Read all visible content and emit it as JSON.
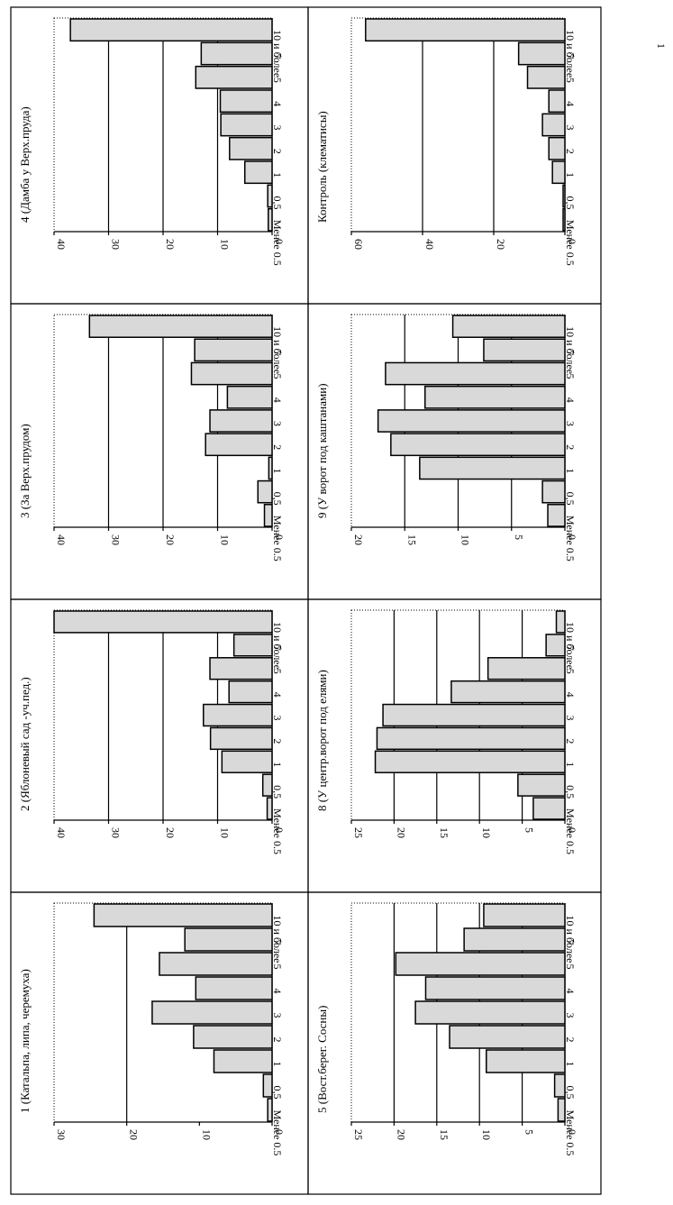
{
  "page_marks": [
    "1"
  ],
  "chart_data": [
    {
      "type": "bar",
      "title": "1 (Катальпа, липа, черемуха)",
      "categories": [
        "10 и более",
        "7",
        "5",
        "4",
        "3",
        "2",
        "1",
        "0,5",
        "Менее 0.5"
      ],
      "values": [
        24.5,
        12,
        15.5,
        10.5,
        16.5,
        10.8,
        8,
        1.2,
        0.6
      ],
      "ylim": [
        0,
        30
      ],
      "yticks": [
        "0",
        "10",
        "20",
        "30"
      ],
      "gridlines": [
        20
      ]
    },
    {
      "type": "bar",
      "title": "2 (Яблоневый сад -уч.пед.)",
      "categories": [
        "10 и более",
        "7",
        "5",
        "4",
        "3",
        "2",
        "1",
        "0,5",
        "Менее 0.5"
      ],
      "values": [
        40,
        7,
        11.4,
        7.9,
        12.6,
        11.3,
        9.2,
        1.7,
        0.9
      ],
      "ylim": [
        0,
        40
      ],
      "yticks": [
        "0",
        "10",
        "20",
        "30",
        "40"
      ],
      "gridlines": [
        10,
        20,
        30
      ]
    },
    {
      "type": "bar",
      "title": "3 (За Верх.прудом)",
      "categories": [
        "10 и более",
        "7",
        "5",
        "4",
        "3",
        "2",
        "1",
        "0,5",
        "Менее 0.5"
      ],
      "values": [
        33.5,
        14.2,
        14.8,
        8.2,
        11.4,
        12.2,
        0.6,
        2.6,
        1.4
      ],
      "ylim": [
        0,
        40
      ],
      "yticks": [
        "0",
        "10",
        "20",
        "30",
        "40"
      ],
      "gridlines": [
        10,
        20,
        30
      ]
    },
    {
      "type": "bar",
      "title": "4 (Дамба у Верх.пруда)",
      "categories": [
        "10 и более",
        "7",
        "5",
        "4",
        "3",
        "2",
        "1",
        "0,5",
        "Менее 0.5"
      ],
      "values": [
        37,
        13,
        14,
        9.5,
        9.4,
        7.8,
        5,
        0.8,
        0.7
      ],
      "ylim": [
        0,
        40
      ],
      "yticks": [
        "0",
        "10",
        "20",
        "30",
        "40"
      ],
      "gridlines": [
        10,
        20,
        30
      ]
    },
    {
      "type": "bar",
      "title": "5 (Вост.берег. Сосны)",
      "categories": [
        "10 и более",
        "7",
        "5",
        "4",
        "3",
        "2",
        "1",
        "0,5",
        "Менее 0.5"
      ],
      "values": [
        9.5,
        11.8,
        19.8,
        16.3,
        17.5,
        13.5,
        9.2,
        1.2,
        0.8
      ],
      "ylim": [
        0,
        25
      ],
      "yticks": [
        "0",
        "5",
        "10",
        "15",
        "20",
        "25"
      ],
      "gridlines": [
        5,
        10,
        15,
        20
      ]
    },
    {
      "type": "bar",
      "title": "8 (У центр.ворот под елями)",
      "categories": [
        "10 и более",
        "7",
        "5",
        "4",
        "3",
        "2",
        "1",
        "0,5",
        "Менее 0.5"
      ],
      "values": [
        1,
        2.2,
        9,
        13.3,
        21.3,
        22,
        22.2,
        5.5,
        3.7
      ],
      "ylim": [
        0,
        25
      ],
      "yticks": [
        "0",
        "5",
        "10",
        "15",
        "20",
        "25"
      ],
      "gridlines": [
        5,
        10,
        15,
        20
      ]
    },
    {
      "type": "bar",
      "title": "9 (У ворот под каштанами)",
      "categories": [
        "10 и более",
        "7",
        "5",
        "4",
        "3",
        "2",
        "1",
        "0,5",
        "Менее 0.5"
      ],
      "values": [
        10.5,
        7.6,
        16.8,
        13.1,
        17.5,
        16.3,
        13.6,
        2.1,
        1.6
      ],
      "ylim": [
        0,
        20
      ],
      "yticks": [
        "0",
        "5",
        "10",
        "15",
        "20"
      ],
      "gridlines": [
        5,
        10,
        15
      ]
    },
    {
      "type": "bar",
      "title": "Контроль (клематисы)",
      "categories": [
        "10 и более",
        "7",
        "5",
        "4",
        "3",
        "2",
        "1",
        "0,5",
        "Менее 0.5"
      ],
      "values": [
        56,
        13,
        10.5,
        4.5,
        6.3,
        4.5,
        3.5,
        0.5,
        0.5
      ],
      "ylim": [
        0,
        60
      ],
      "yticks": [
        "0",
        "20",
        "40",
        "60"
      ],
      "gridlines": [
        20,
        40
      ]
    }
  ]
}
